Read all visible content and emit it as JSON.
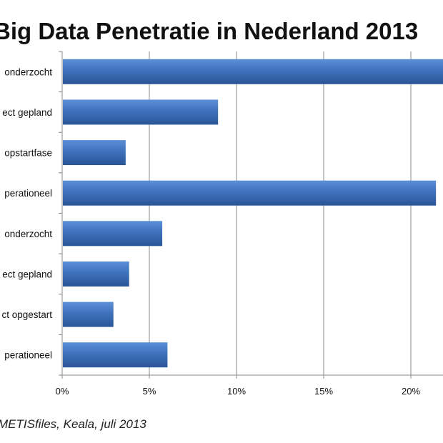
{
  "chart_data": {
    "type": "bar",
    "orientation": "horizontal",
    "title": "Big Data Penetratie in Nederland 2013",
    "categories": [
      "onderzocht",
      "ect gepland",
      "opstartfase",
      "perationeel",
      "onderzocht",
      "ect gepland",
      "ct opgestart",
      "perationeel"
    ],
    "values": [
      22.5,
      8.9,
      3.6,
      21.4,
      5.7,
      3.8,
      2.9,
      6.0
    ],
    "xlim": [
      0,
      22
    ],
    "xticks": [
      0,
      5,
      10,
      15,
      20
    ],
    "xtick_labels": [
      "0%",
      "5%",
      "10%",
      "15%",
      "20%"
    ],
    "grid": "vertical",
    "bar_color": "#3d6fb6",
    "source": "METISfiles, Keala, juli 2013"
  }
}
